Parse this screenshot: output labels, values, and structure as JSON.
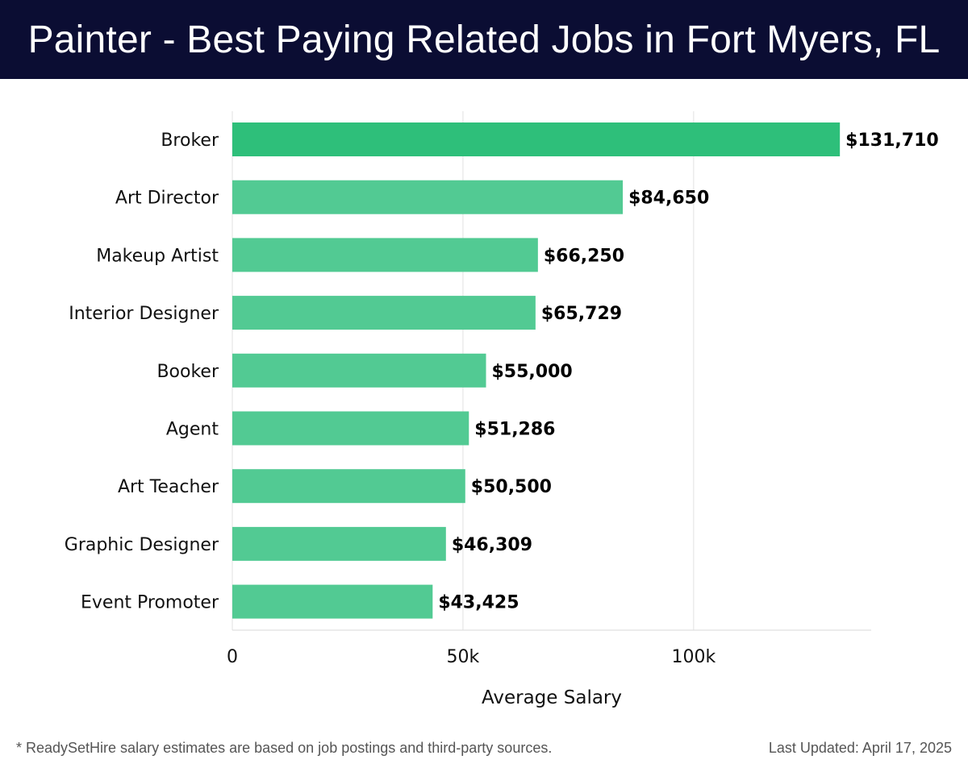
{
  "header": {
    "title": "Painter - Best Paying Related Jobs in Fort Myers, FL"
  },
  "footer": {
    "note": "* ReadySetHire salary estimates are based on job postings and third-party sources.",
    "updated": "Last Updated: April 17, 2025"
  },
  "colors": {
    "header_bg": "#0b0d33",
    "bar_top": "#2ebf7a",
    "bar": "#52ca93",
    "text": "#111111"
  },
  "chart_data": {
    "type": "bar",
    "orientation": "horizontal",
    "title": "Painter - Best Paying Related Jobs in Fort Myers, FL",
    "xlabel": "Average Salary",
    "ylabel": "",
    "xlim": [
      0,
      138500
    ],
    "grid": true,
    "xticks": [
      0,
      50000,
      100000
    ],
    "xtick_labels": [
      "0",
      "50k",
      "100k"
    ],
    "categories": [
      "Broker",
      "Art Director",
      "Makeup Artist",
      "Interior Designer",
      "Booker",
      "Agent",
      "Art Teacher",
      "Graphic Designer",
      "Event Promoter"
    ],
    "values": [
      131710,
      84650,
      66250,
      65729,
      55000,
      51286,
      50500,
      46309,
      43425
    ],
    "value_labels": [
      "$131,710",
      "$84,650",
      "$66,250",
      "$65,729",
      "$55,000",
      "$51,286",
      "$50,500",
      "$46,309",
      "$43,425"
    ]
  }
}
